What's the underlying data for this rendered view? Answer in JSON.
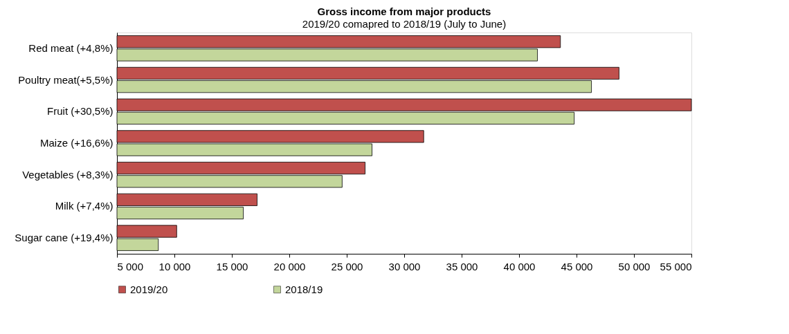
{
  "chart_data": {
    "type": "bar",
    "orientation": "horizontal",
    "title": "Gross income from major products",
    "subtitle": "2019/20 comapred to 2018/19 (July to June)",
    "categories": [
      "Red meat (+4,8%)",
      "Poultry meat(+5,5%)",
      "Fruit (+30,5%)",
      "Maize (+16,6%)",
      "Vegetables (+8,3%)",
      "Milk (+7,4%)",
      "Sugar cane (+19,4%)"
    ],
    "series": [
      {
        "name": "2019/20",
        "color": "#c0504d",
        "values": [
          43600,
          48700,
          55000,
          31700,
          26600,
          17200,
          10200
        ]
      },
      {
        "name": "2018/19",
        "color": "#c3d69b",
        "values": [
          41600,
          46300,
          44800,
          27200,
          24600,
          16000,
          8600
        ]
      }
    ],
    "xlim": [
      5000,
      55000
    ],
    "xticks": [
      {
        "value": 5000,
        "label": "5 000"
      },
      {
        "value": 10000,
        "label": "10 000"
      },
      {
        "value": 15000,
        "label": "15 000"
      },
      {
        "value": 20000,
        "label": "20 000"
      },
      {
        "value": 25000,
        "label": "25 000"
      },
      {
        "value": 30000,
        "label": "30 000"
      },
      {
        "value": 35000,
        "label": "35 000"
      },
      {
        "value": 40000,
        "label": "40 000"
      },
      {
        "value": 45000,
        "label": "45 000"
      },
      {
        "value": 50000,
        "label": "50 000"
      },
      {
        "value": 55000,
        "label": "55 000"
      }
    ],
    "grid": false,
    "legend": "bottom"
  }
}
